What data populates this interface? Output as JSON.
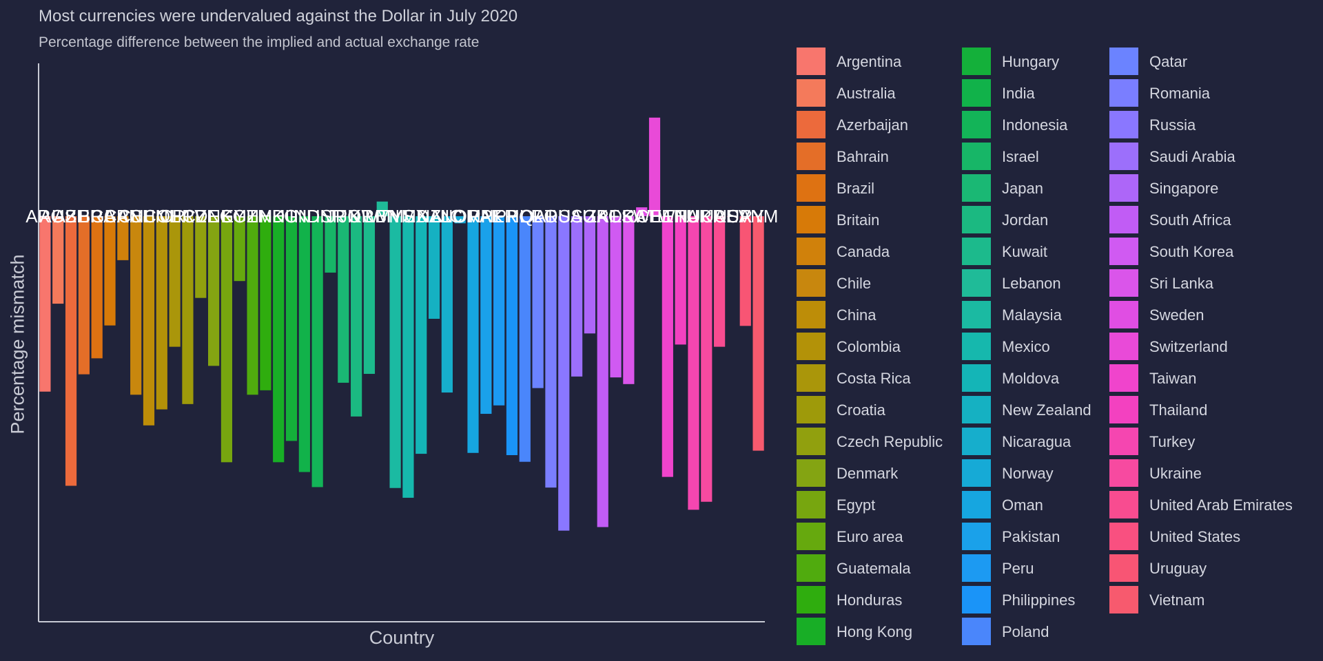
{
  "chart_data": {
    "type": "bar",
    "title": "Most currencies were undervalued against the Dollar in July 2020",
    "subtitle": "Percentage difference between the implied and actual exchange rate",
    "xlabel": "Country",
    "ylabel": "Percentage mismatch",
    "ylim": [
      -80,
      25
    ],
    "grid": false,
    "legend_position": "right",
    "categories": [
      "Argentina",
      "Australia",
      "Azerbaijan",
      "Bahrain",
      "Brazil",
      "Britain",
      "Canada",
      "Chile",
      "China",
      "Colombia",
      "Costa Rica",
      "Croatia",
      "Czech Republic",
      "Denmark",
      "Egypt",
      "Euro area",
      "Guatemala",
      "Honduras",
      "Hong Kong",
      "Hungary",
      "India",
      "Indonesia",
      "Israel",
      "Japan",
      "Jordan",
      "Kuwait",
      "Lebanon",
      "Malaysia",
      "Mexico",
      "Moldova",
      "New Zealand",
      "Nicaragua",
      "Norway",
      "Oman",
      "Pakistan",
      "Peru",
      "Philippines",
      "Poland",
      "Qatar",
      "Romania",
      "Russia",
      "Saudi Arabia",
      "Singapore",
      "South Africa",
      "South Korea",
      "Sri Lanka",
      "Sweden",
      "Switzerland",
      "Taiwan",
      "Thailand",
      "Turkey",
      "Ukraine",
      "United Arab Emirates",
      "United States",
      "Uruguay",
      "Vietnam"
    ],
    "bar_labels": [
      "ARG",
      "AUS",
      "AZE",
      "BHR",
      "BRA",
      "GBR",
      "CAN",
      "CHL",
      "CHN",
      "COL",
      "CRI",
      "HRV",
      "CZE",
      "DNK",
      "EGY",
      "EUZ",
      "GTM",
      "HND",
      "HKG",
      "HUN",
      "IND",
      "IDN",
      "ISR",
      "JPN",
      "JOR",
      "KWT",
      "LBN",
      "MYS",
      "MEX",
      "MDA",
      "NZL",
      "NIC",
      "NOR",
      "OMN",
      "PAK",
      "PER",
      "PHL",
      "POL",
      "QAT",
      "ROU",
      "RUS",
      "SAU",
      "SGP",
      "ZAF",
      "KOR",
      "LKA",
      "SWE",
      "CHE",
      "TWN",
      "THA",
      "TUR",
      "UKR",
      "UAE",
      "USA",
      "URY",
      "VNM"
    ],
    "values": [
      -39.5,
      -19.7,
      -60.7,
      -35.6,
      -32.0,
      -24.6,
      -9.9,
      -40.2,
      -47.1,
      -43.5,
      -29.4,
      -42.3,
      -18.4,
      -33.7,
      -55.4,
      -14.6,
      -40.2,
      -39.2,
      -55.4,
      -50.6,
      -57.6,
      -61.0,
      -12.7,
      -37.5,
      -45.1,
      -35.5,
      3.3,
      -61.2,
      -63.4,
      -53.5,
      -23.1,
      -39.7,
      -1.6,
      -53.3,
      -44.5,
      -42.6,
      -53.8,
      -55.3,
      -38.7,
      -61.1,
      -70.8,
      -36.1,
      -26.4,
      -70.0,
      -36.3,
      -37.8,
      2.0,
      22.2,
      -58.7,
      -28.9,
      -66.1,
      -64.3,
      -29.4,
      0.0,
      -24.7,
      -52.8
    ],
    "colors": [
      "#f8766d",
      "#f47a5b",
      "#ec6a3c",
      "#e46e28",
      "#de7212",
      "#d77a08",
      "#d0810b",
      "#c8870e",
      "#bd8d08",
      "#b39208",
      "#aa960a",
      "#9e9a0a",
      "#91a00e",
      "#84a412",
      "#77a60f",
      "#66a90e",
      "#50ab0e",
      "#2fad0e",
      "#18ae26",
      "#14b03a",
      "#11b24a",
      "#13b458",
      "#17b667",
      "#1ab874",
      "#1bb981",
      "#1cba8c",
      "#1fbb98",
      "#1bbaa2",
      "#16b8ad",
      "#14b5b7",
      "#15b1c2",
      "#16aecc",
      "#16aad6",
      "#16a6e0",
      "#1aa1ea",
      "#1c9af2",
      "#1a94f8",
      "#4a86fb",
      "#6b83ff",
      "#7a7eff",
      "#8a77ff",
      "#9c6ffb",
      "#ad66f8",
      "#c15cf5",
      "#d05af2",
      "#da55ea",
      "#e04ee3",
      "#e94ad8",
      "#f044cc",
      "#f341c0",
      "#f546b0",
      "#f74aa0",
      "#f84c90",
      "#f95080",
      "#f85574",
      "#f75a6e"
    ]
  }
}
